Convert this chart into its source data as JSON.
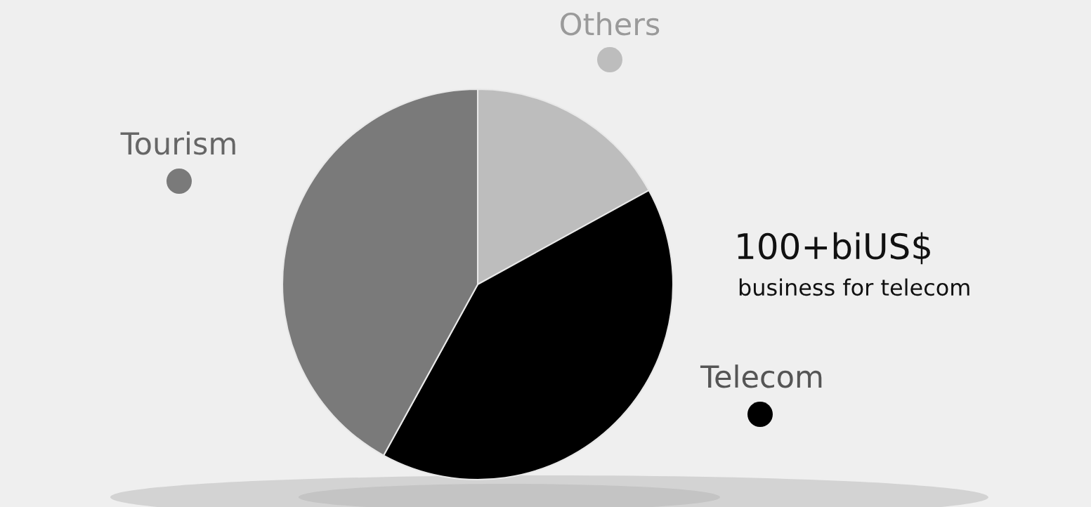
{
  "chart_data": {
    "type": "pie",
    "categories": [
      "Others",
      "Telecom",
      "Tourism"
    ],
    "values": [
      17,
      41,
      42
    ],
    "colors": [
      "#bdbdbd",
      "#000000",
      "#7a7a7a"
    ],
    "annotations": [
      "100+biUS$",
      "business for telecom"
    ]
  }
}
